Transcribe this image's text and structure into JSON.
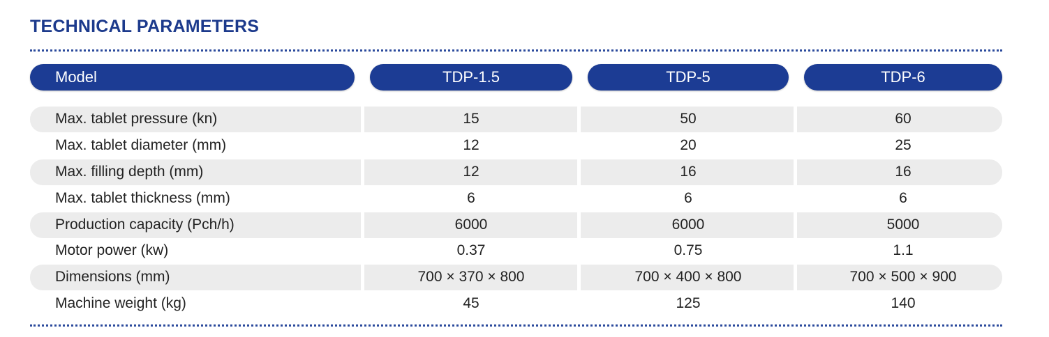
{
  "header": {
    "title": "TECHNICAL PARAMETERS"
  },
  "table": {
    "columns": [
      "Model",
      "TDP-1.5",
      "TDP-5",
      "TDP-6"
    ],
    "rows": [
      [
        "Max. tablet pressure (kn)",
        "15",
        "50",
        "60"
      ],
      [
        "Max. tablet diameter (mm)",
        "12",
        "20",
        "25"
      ],
      [
        "Max. filling depth (mm)",
        "12",
        "16",
        "16"
      ],
      [
        "Max. tablet thickness (mm)",
        "6",
        "6",
        "6"
      ],
      [
        "Production capacity (Pch/h)",
        "6000",
        "6000",
        "5000"
      ],
      [
        "Motor power (kw)",
        "0.37",
        "0.75",
        "1.1"
      ],
      [
        "Dimensions (mm)",
        "700 × 370 × 800",
        "700 × 400 × 800",
        "700 × 500 × 900"
      ],
      [
        "Machine weight (kg)",
        "45",
        "125",
        "140"
      ]
    ]
  }
}
